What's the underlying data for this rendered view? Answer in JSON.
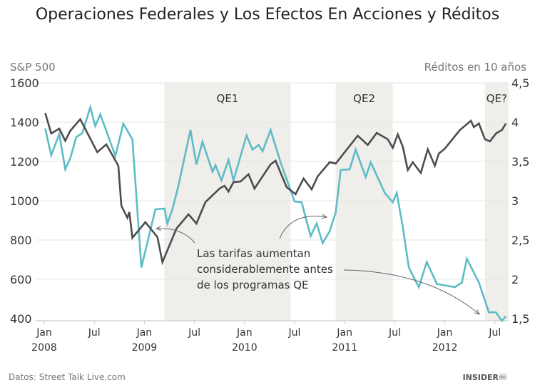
{
  "chart_data": {
    "type": "line",
    "title": "Operaciones Federales y Los Efectos En Acciones y Réditos",
    "ylabel_left": "S&P 500",
    "ylabel_right": "Réditos en 10 años",
    "source": "Datos: Street Talk Live.com",
    "logo": "INSIDER PRO",
    "xlim": [
      2007.92,
      2012.64
    ],
    "ylim_left": [
      400,
      1600
    ],
    "ylim_right": [
      1.5,
      4.5
    ],
    "grid": true,
    "y_ticks_left": [
      "1600",
      "1400",
      "1200",
      "1000",
      "800",
      "600",
      "400"
    ],
    "y_ticks_left_values": [
      1600,
      1400,
      1200,
      1000,
      800,
      600,
      400
    ],
    "y_ticks_right": [
      "4,5",
      "4",
      "3,5",
      "3",
      "2,5",
      "2",
      "1,5"
    ],
    "y_ticks_right_values": [
      4.5,
      4,
      3.5,
      3,
      2.5,
      2,
      1.5
    ],
    "x_ticks": [
      {
        "x": 2008.0,
        "month": "Jan",
        "year": "2008"
      },
      {
        "x": 2008.5,
        "month": "Jul",
        "year": ""
      },
      {
        "x": 2009.0,
        "month": "Jan",
        "year": "2009"
      },
      {
        "x": 2009.5,
        "month": "Jul",
        "year": ""
      },
      {
        "x": 2010.0,
        "month": "Jan",
        "year": "2010"
      },
      {
        "x": 2010.5,
        "month": "Jul",
        "year": ""
      },
      {
        "x": 2011.0,
        "month": "Jan",
        "year": "2011"
      },
      {
        "x": 2011.5,
        "month": "Jul",
        "year": ""
      },
      {
        "x": 2012.0,
        "month": "Jan",
        "year": "2012"
      },
      {
        "x": 2012.5,
        "month": "Jul",
        "year": ""
      }
    ],
    "bands": [
      {
        "label": "QE1",
        "start": 2009.2,
        "end": 2010.46
      },
      {
        "label": "QE2",
        "start": 2010.91,
        "end": 2011.48
      },
      {
        "label": "QE?",
        "start": 2012.4,
        "end": 2012.64
      }
    ],
    "annotation": {
      "lines": [
        "Las tarifas aumentan",
        "considerablemente antes",
        "de los programas QE"
      ]
    },
    "colors": {
      "sp500": "#4d4d4f",
      "yield": "#5dbcc6",
      "band": "#efeeea",
      "grid": "#e6e6e6"
    },
    "series": [
      {
        "axis": "left",
        "x": [
          2008.01,
          2008.07,
          2008.15,
          2008.21,
          2008.26,
          2008.36,
          2008.53,
          2008.62,
          2008.74,
          2008.77,
          2008.83,
          2008.85,
          2008.88,
          2009.01,
          2009.13,
          2009.18,
          2009.32,
          2009.44,
          2009.52,
          2009.61,
          2009.75,
          2009.8,
          2009.84,
          2009.89,
          2009.96,
          2010.04,
          2010.1,
          2010.26,
          2010.31,
          2010.42,
          2010.51,
          2010.59,
          2010.67,
          2010.73,
          2010.85,
          2010.91,
          2011.13,
          2011.23,
          2011.32,
          2011.43,
          2011.48,
          2011.53,
          2011.58,
          2011.63,
          2011.68,
          2011.76,
          2011.83,
          2011.9,
          2011.94,
          2012.0,
          2012.15,
          2012.26,
          2012.29,
          2012.34,
          2012.4,
          2012.45,
          2012.51,
          2012.57,
          2012.61
        ],
        "values": [
          1447,
          1342,
          1367,
          1305,
          1356,
          1415,
          1247,
          1287,
          1178,
          975,
          913,
          942,
          811,
          891,
          815,
          687,
          858,
          931,
          884,
          993,
          1062,
          1076,
          1047,
          1095,
          1098,
          1135,
          1062,
          1185,
          1204,
          1069,
          1033,
          1113,
          1058,
          1124,
          1196,
          1189,
          1331,
          1284,
          1345,
          1313,
          1269,
          1338,
          1276,
          1156,
          1196,
          1142,
          1262,
          1178,
          1240,
          1265,
          1360,
          1407,
          1375,
          1393,
          1313,
          1302,
          1342,
          1360,
          1393
        ]
      },
      {
        "axis": "right",
        "x": [
          2008.01,
          2008.07,
          2008.15,
          2008.21,
          2008.26,
          2008.32,
          2008.38,
          2008.46,
          2008.51,
          2008.56,
          2008.71,
          2008.79,
          2008.88,
          2008.97,
          2009.11,
          2009.2,
          2009.23,
          2009.28,
          2009.34,
          2009.46,
          2009.52,
          2009.58,
          2009.68,
          2009.71,
          2009.77,
          2009.84,
          2009.89,
          2010.02,
          2010.08,
          2010.14,
          2010.18,
          2010.26,
          2010.36,
          2010.5,
          2010.57,
          2010.66,
          2010.72,
          2010.78,
          2010.85,
          2010.91,
          2010.96,
          2011.05,
          2011.11,
          2011.21,
          2011.26,
          2011.4,
          2011.48,
          2011.52,
          2011.58,
          2011.64,
          2011.74,
          2011.82,
          2011.92,
          2012.1,
          2012.17,
          2012.22,
          2012.34,
          2012.44,
          2012.51,
          2012.57,
          2012.61
        ],
        "values": [
          3.92,
          3.58,
          3.85,
          3.4,
          3.54,
          3.81,
          3.86,
          4.19,
          3.95,
          4.1,
          3.57,
          3.98,
          3.78,
          2.15,
          2.89,
          2.9,
          2.71,
          2.89,
          3.19,
          3.9,
          3.46,
          3.75,
          3.37,
          3.45,
          3.26,
          3.52,
          3.26,
          3.83,
          3.65,
          3.71,
          3.63,
          3.9,
          3.49,
          2.99,
          2.98,
          2.55,
          2.71,
          2.46,
          2.61,
          2.85,
          3.39,
          3.4,
          3.65,
          3.3,
          3.49,
          3.1,
          2.98,
          3.1,
          2.67,
          2.15,
          1.9,
          2.22,
          1.94,
          1.9,
          1.96,
          2.26,
          1.96,
          1.58,
          1.58,
          1.47,
          1.53
        ]
      }
    ]
  }
}
